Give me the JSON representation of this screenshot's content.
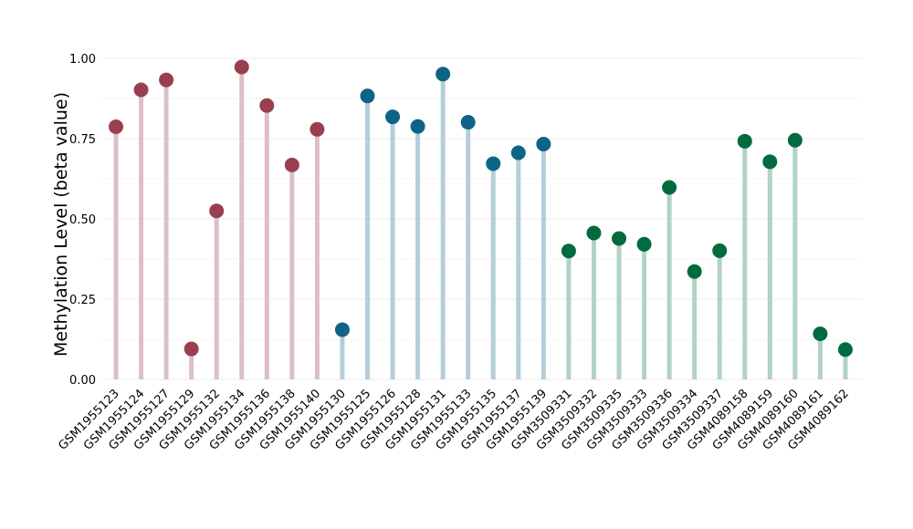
{
  "chart_data": {
    "type": "lollipop",
    "title": "",
    "xlabel": "",
    "ylabel": "Methylation Level (beta value)",
    "ylim": [
      0,
      1.0
    ],
    "yticks": [
      "0.00",
      "0.25",
      "0.50",
      "0.75",
      "1.00"
    ],
    "grid": "horizontal",
    "legend": "none",
    "colors": {
      "group1": {
        "dot": "#9b3f50",
        "stem": "#dcc0c7"
      },
      "group2": {
        "dot": "#0e6487",
        "stem": "#b5cdd8"
      },
      "group3": {
        "dot": "#006b3e",
        "stem": "#b2d2c3"
      }
    },
    "points": [
      {
        "label": "GSM1955123",
        "value": 0.787,
        "group": "group1"
      },
      {
        "label": "GSM1955124",
        "value": 0.902,
        "group": "group1"
      },
      {
        "label": "GSM1955127",
        "value": 0.933,
        "group": "group1"
      },
      {
        "label": "GSM1955129",
        "value": 0.095,
        "group": "group1"
      },
      {
        "label": "GSM1955132",
        "value": 0.525,
        "group": "group1"
      },
      {
        "label": "GSM1955134",
        "value": 0.973,
        "group": "group1"
      },
      {
        "label": "GSM1955136",
        "value": 0.853,
        "group": "group1"
      },
      {
        "label": "GSM1955138",
        "value": 0.668,
        "group": "group1"
      },
      {
        "label": "GSM1955140",
        "value": 0.779,
        "group": "group1"
      },
      {
        "label": "GSM1955130",
        "value": 0.155,
        "group": "group2"
      },
      {
        "label": "GSM1955125",
        "value": 0.883,
        "group": "group2"
      },
      {
        "label": "GSM1955126",
        "value": 0.818,
        "group": "group2"
      },
      {
        "label": "GSM1955128",
        "value": 0.788,
        "group": "group2"
      },
      {
        "label": "GSM1955131",
        "value": 0.951,
        "group": "group2"
      },
      {
        "label": "GSM1955133",
        "value": 0.801,
        "group": "group2"
      },
      {
        "label": "GSM1955135",
        "value": 0.672,
        "group": "group2"
      },
      {
        "label": "GSM1955137",
        "value": 0.706,
        "group": "group2"
      },
      {
        "label": "GSM1955139",
        "value": 0.733,
        "group": "group2"
      },
      {
        "label": "GSM3509331",
        "value": 0.4,
        "group": "group3"
      },
      {
        "label": "GSM3509332",
        "value": 0.456,
        "group": "group3"
      },
      {
        "label": "GSM3509335",
        "value": 0.439,
        "group": "group3"
      },
      {
        "label": "GSM3509333",
        "value": 0.421,
        "group": "group3"
      },
      {
        "label": "GSM3509336",
        "value": 0.598,
        "group": "group3"
      },
      {
        "label": "GSM3509334",
        "value": 0.336,
        "group": "group3"
      },
      {
        "label": "GSM3509337",
        "value": 0.401,
        "group": "group3"
      },
      {
        "label": "GSM4089158",
        "value": 0.742,
        "group": "group3"
      },
      {
        "label": "GSM4089159",
        "value": 0.678,
        "group": "group3"
      },
      {
        "label": "GSM4089160",
        "value": 0.745,
        "group": "group3"
      },
      {
        "label": "GSM4089161",
        "value": 0.142,
        "group": "group3"
      },
      {
        "label": "GSM4089162",
        "value": 0.093,
        "group": "group3"
      }
    ]
  }
}
